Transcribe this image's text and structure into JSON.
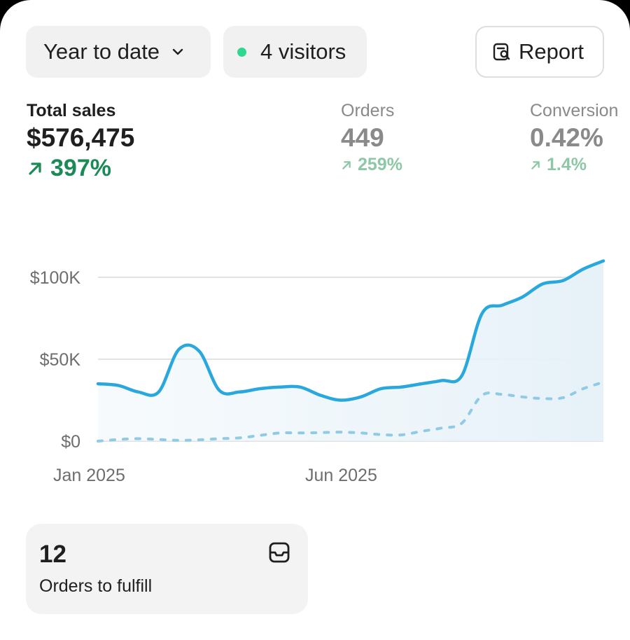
{
  "filters": {
    "range_label": "Year to date",
    "visitors_label": "4 visitors",
    "report_label": "Report"
  },
  "metrics": [
    {
      "label": "Total sales",
      "value": "$576,475",
      "change": "397%"
    },
    {
      "label": "Orders",
      "value": "449",
      "change": "259%"
    },
    {
      "label": "Conversion",
      "value": "0.42%",
      "change": "1.4%"
    }
  ],
  "chart_data": {
    "type": "line",
    "y_ticks": [
      "$0",
      "$50K",
      "$100K"
    ],
    "x_ticks": [
      "Jan 2025",
      "Jun 2025"
    ],
    "ylim": [
      0,
      100000
    ],
    "grid": true,
    "colors": {
      "current": "#2aa7dd",
      "previous": "#8fcbe4"
    },
    "series": [
      {
        "values": [
          35000,
          34000,
          30000,
          30000,
          56000,
          55000,
          31000,
          30000,
          32000,
          33000,
          33000,
          28000,
          25000,
          27000,
          32000,
          33000,
          35000,
          37000,
          40000,
          78000,
          83000,
          88000,
          96000,
          98000,
          105000,
          110000
        ]
      },
      {
        "values": [
          0,
          1000,
          1500,
          1000,
          500,
          800,
          1500,
          2000,
          3500,
          5000,
          5000,
          5200,
          5500,
          5000,
          4000,
          3800,
          6000,
          8000,
          11000,
          28000,
          28500,
          27000,
          26000,
          26500,
          32000,
          36000
        ]
      }
    ]
  },
  "fulfill_card": {
    "count": "12",
    "label": "Orders to fulfill"
  },
  "icons": {
    "range": "chevron-down-icon",
    "visitors": "live-dot-icon",
    "report": "report-search-icon",
    "change": "arrow-up-right-icon",
    "fulfill": "inbox-icon"
  }
}
